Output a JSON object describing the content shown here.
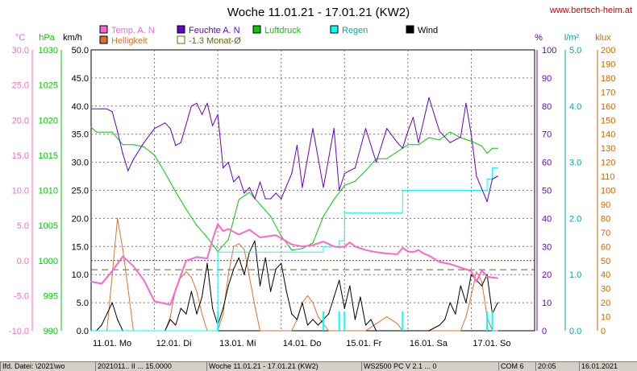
{
  "title": "Woche 11.01.21 - 17.01.21 (KW2)",
  "website": "www.bertsch-heim.at",
  "colors": {
    "temp": "#ff66cc",
    "humidity": "#6600cc",
    "pressure": "#00cc00",
    "rain": "#00ffff",
    "wind": "#000000",
    "brightness": "#e07030",
    "avg_line": "#666600",
    "zero_line": "#cc0000",
    "site": "#cc0000",
    "rain_axis": "#00aaaa",
    "temp_axis": "#ff66cc",
    "hum_axis": "#6600cc",
    "klux_axis": "#cc6600"
  },
  "legend": {
    "temp": "Temp. A. N",
    "brightness": "Helligkeit",
    "humidity": "Feuchte A. N",
    "avg": "-1.3 Monat-Ø",
    "pressure": "Luftdruck",
    "rain": "Regen",
    "wind": "Wind"
  },
  "axis_units": {
    "temp": "°C",
    "pressure": "hPa",
    "wind": "km/h",
    "humidity": "%",
    "rain": "l/m²",
    "klux": "klux"
  },
  "statusbar": [
    "Ifd. Datei: \\2021\\wo",
    "2021011.. II ... 15.0000",
    "Woche 11.01.21 - 17.01.21 (KW2)",
    "WS2500 PC V 2.1 ... 0",
    "COM 6",
    "20:05",
    "16.01.2021"
  ],
  "chart_data": {
    "type": "line",
    "title": "Woche 11.01.21 - 17.01.21 (KW2)",
    "x_categories": [
      "11.01. Mo",
      "12.01. Di",
      "13.01. Mi",
      "14.01. Do",
      "15.01. Fr",
      "16.01. Sa",
      "17.01. So"
    ],
    "x_unit": "hours since 11.01. 00:00",
    "x_range": [
      0,
      168
    ],
    "axes": {
      "wind": {
        "label": "km/h",
        "range": [
          0,
          50
        ],
        "ticks": [
          "0.0",
          "5.0",
          "10.0",
          "15.0",
          "20.0",
          "25.0",
          "30.0",
          "35.0",
          "40.0",
          "45.0",
          "50.0"
        ]
      },
      "temp": {
        "label": "°C",
        "range": [
          -10,
          30
        ],
        "ticks": [
          "-10.0",
          "-5.0",
          "0.0",
          "5.0",
          "10.0",
          "15.0",
          "20.0",
          "25.0",
          "30.0"
        ]
      },
      "pressure": {
        "label": "hPa",
        "range": [
          990,
          1030
        ],
        "ticks": [
          "990",
          "995",
          "1000",
          "1005",
          "1010",
          "1015",
          "1020",
          "1025",
          "1030"
        ]
      },
      "humidity": {
        "label": "%",
        "range": [
          0,
          100
        ],
        "ticks": [
          "0",
          "10",
          "20",
          "30",
          "40",
          "50",
          "60",
          "70",
          "80",
          "90",
          "100"
        ]
      },
      "rain": {
        "label": "l/m²",
        "range": [
          0,
          5
        ],
        "ticks": [
          "0.0",
          "1.0",
          "2.0",
          "3.0",
          "4.0",
          "5.0"
        ]
      },
      "klux": {
        "label": "klux",
        "range": [
          0,
          200
        ],
        "ticks": [
          "0",
          "10",
          "20",
          "30",
          "40",
          "50",
          "60",
          "70",
          "80",
          "90",
          "100",
          "110",
          "120",
          "130",
          "140",
          "150",
          "160",
          "170",
          "180",
          "190",
          "200"
        ]
      }
    },
    "reference_lines": [
      {
        "name": "-1.3 Monat-Ø",
        "axis": "temp",
        "value": -1.3,
        "style": "dashed"
      },
      {
        "name": "0 °C",
        "axis": "temp",
        "value": 0,
        "style": "dotted"
      }
    ],
    "grid": true,
    "series": [
      {
        "name": "Temp. A. N",
        "axis": "temp",
        "x": [
          0,
          4,
          8,
          12,
          16,
          20,
          24,
          30,
          32,
          36,
          40,
          44,
          46,
          48,
          50,
          52,
          56,
          60,
          64,
          70,
          76,
          80,
          84,
          88,
          92,
          94,
          96,
          98,
          100,
          104,
          108,
          112,
          116,
          118,
          120,
          122,
          124,
          126,
          128,
          132,
          136,
          140,
          144,
          146,
          148,
          150,
          152,
          154
        ],
        "y": [
          -3.0,
          -3.3,
          -1.5,
          0.6,
          -0.8,
          -2.8,
          -5.8,
          -6.3,
          -4.2,
          0.0,
          0.5,
          0.3,
          3.0,
          5.2,
          4.2,
          4.5,
          3.7,
          4.4,
          3.3,
          3.6,
          2.3,
          2.0,
          2.2,
          2.7,
          2.0,
          1.9,
          2.0,
          2.6,
          2.0,
          1.5,
          1.2,
          1.0,
          0.9,
          1.8,
          1.3,
          1.2,
          1.5,
          1.0,
          0.7,
          -0.2,
          -0.5,
          -1.0,
          -1.5,
          -3.0,
          -1.4,
          -2.3,
          -2.4,
          -2.5
        ]
      },
      {
        "name": "Feuchte A. N",
        "axis": "humidity",
        "x": [
          0,
          4,
          6,
          8,
          10,
          12,
          14,
          16,
          20,
          24,
          28,
          30,
          32,
          34,
          38,
          40,
          42,
          44,
          46,
          48,
          50,
          52,
          54,
          56,
          58,
          60,
          62,
          64,
          66,
          68,
          70,
          72,
          76,
          78,
          80,
          84,
          88,
          92,
          94,
          96,
          98,
          100,
          104,
          108,
          112,
          116,
          118,
          120,
          122,
          124,
          128,
          132,
          136,
          140,
          142,
          144,
          146,
          150,
          152,
          154
        ],
        "y": [
          79,
          79,
          79,
          78,
          71,
          63,
          57,
          61,
          67,
          72,
          74,
          72,
          66,
          67,
          80,
          81,
          77,
          81,
          73,
          77,
          58,
          60,
          53,
          55,
          49,
          51,
          47,
          53,
          47,
          47,
          49,
          47,
          56,
          66,
          51,
          72,
          51,
          72,
          50,
          56,
          57,
          58,
          72,
          60,
          72,
          67,
          65,
          71,
          76,
          67,
          83,
          71,
          67,
          69,
          81,
          70,
          55,
          46,
          54,
          55
        ]
      },
      {
        "name": "Luftdruck",
        "axis": "pressure",
        "x": [
          0,
          2,
          8,
          12,
          16,
          20,
          24,
          28,
          32,
          36,
          40,
          44,
          48,
          52,
          56,
          60,
          64,
          68,
          72,
          76,
          80,
          84,
          88,
          92,
          96,
          100,
          104,
          108,
          112,
          116,
          120,
          124,
          128,
          132,
          136,
          140,
          144,
          148,
          150,
          152,
          154
        ],
        "y": [
          1019,
          1018.3,
          1018.3,
          1016.5,
          1016.5,
          1016.2,
          1015,
          1012.5,
          1009.8,
          1007.3,
          1005,
          1003.3,
          1001.3,
          1003,
          1008.7,
          1009.7,
          1008,
          1006.3,
          1003.5,
          1001.5,
          1001.7,
          1002.5,
          1006.3,
          1008.7,
          1010.7,
          1011.3,
          1012.8,
          1014.5,
          1014.5,
          1015.5,
          1016.5,
          1016.5,
          1017.5,
          1017.2,
          1018.3,
          1017.5,
          1017,
          1016.3,
          1015.3,
          1016,
          1016
        ]
      },
      {
        "name": "Regen",
        "axis": "rain",
        "style": "step",
        "x": [
          0,
          44,
          46,
          48,
          50,
          60,
          63,
          80,
          82,
          84,
          88,
          94,
          96,
          100,
          112,
          116,
          118,
          130,
          136,
          140,
          144,
          146,
          148,
          150,
          152,
          154
        ],
        "y": [
          0.0,
          0.0,
          0.0,
          1.4,
          1.4,
          1.4,
          1.4,
          1.4,
          1.4,
          1.4,
          1.5,
          1.6,
          2.1,
          2.1,
          2.1,
          2.1,
          2.5,
          2.5,
          2.5,
          2.5,
          2.5,
          2.5,
          2.5,
          2.7,
          2.9,
          2.9
        ]
      },
      {
        "name": "Wind",
        "axis": "wind",
        "x": [
          0,
          2,
          4,
          6,
          8,
          10,
          12,
          14,
          16,
          20,
          22,
          24,
          28,
          30,
          32,
          34,
          36,
          38,
          40,
          42,
          44,
          46,
          48,
          50,
          52,
          54,
          56,
          58,
          60,
          62,
          64,
          66,
          68,
          70,
          72,
          74,
          76,
          78,
          80,
          82,
          84,
          86,
          88,
          90,
          92,
          94,
          96,
          98,
          100,
          102,
          104,
          106,
          108,
          110,
          112,
          116,
          120,
          124,
          128,
          132,
          134,
          136,
          138,
          140,
          142,
          144,
          146,
          148,
          150,
          152,
          154
        ],
        "y": [
          0,
          0,
          1,
          3,
          5,
          2,
          0,
          0,
          0,
          0,
          0,
          0,
          0,
          2,
          1,
          4,
          3,
          7,
          3,
          6,
          12,
          4,
          1,
          4,
          8,
          11,
          13,
          10,
          14,
          16,
          8,
          13,
          7,
          11,
          12,
          7,
          3,
          2,
          5,
          1,
          2,
          1,
          2,
          3,
          6,
          9,
          4,
          8,
          2,
          6,
          1,
          2,
          0,
          0,
          0,
          0,
          0,
          0,
          0,
          1,
          2,
          5,
          3,
          8,
          5,
          10,
          9,
          8,
          10,
          3,
          5
        ]
      },
      {
        "name": "Helligkeit",
        "axis": "klux",
        "x": [
          0,
          4,
          6,
          8,
          10,
          12,
          14,
          16,
          20,
          24,
          28,
          30,
          32,
          34,
          36,
          38,
          40,
          42,
          44,
          46,
          48,
          50,
          52,
          54,
          56,
          58,
          60,
          62,
          64,
          66,
          68,
          70,
          72,
          76,
          78,
          80,
          82,
          84,
          86,
          88,
          90,
          92,
          94,
          96,
          98,
          100,
          104,
          108,
          112,
          116,
          118,
          120,
          124,
          128,
          132,
          136,
          140,
          142,
          144,
          146,
          148,
          150,
          152,
          154
        ],
        "y": [
          0,
          0,
          0,
          40,
          80,
          58,
          30,
          0,
          0,
          0,
          0,
          10,
          30,
          38,
          42,
          38,
          28,
          12,
          0,
          0,
          0,
          12,
          40,
          60,
          62,
          58,
          38,
          18,
          0,
          0,
          0,
          0,
          0,
          0,
          8,
          20,
          25,
          20,
          10,
          5,
          0,
          0,
          0,
          0,
          0,
          0,
          0,
          5,
          10,
          5,
          0,
          0,
          0,
          0,
          0,
          0,
          0,
          10,
          25,
          42,
          35,
          10,
          0,
          0
        ]
      }
    ]
  }
}
